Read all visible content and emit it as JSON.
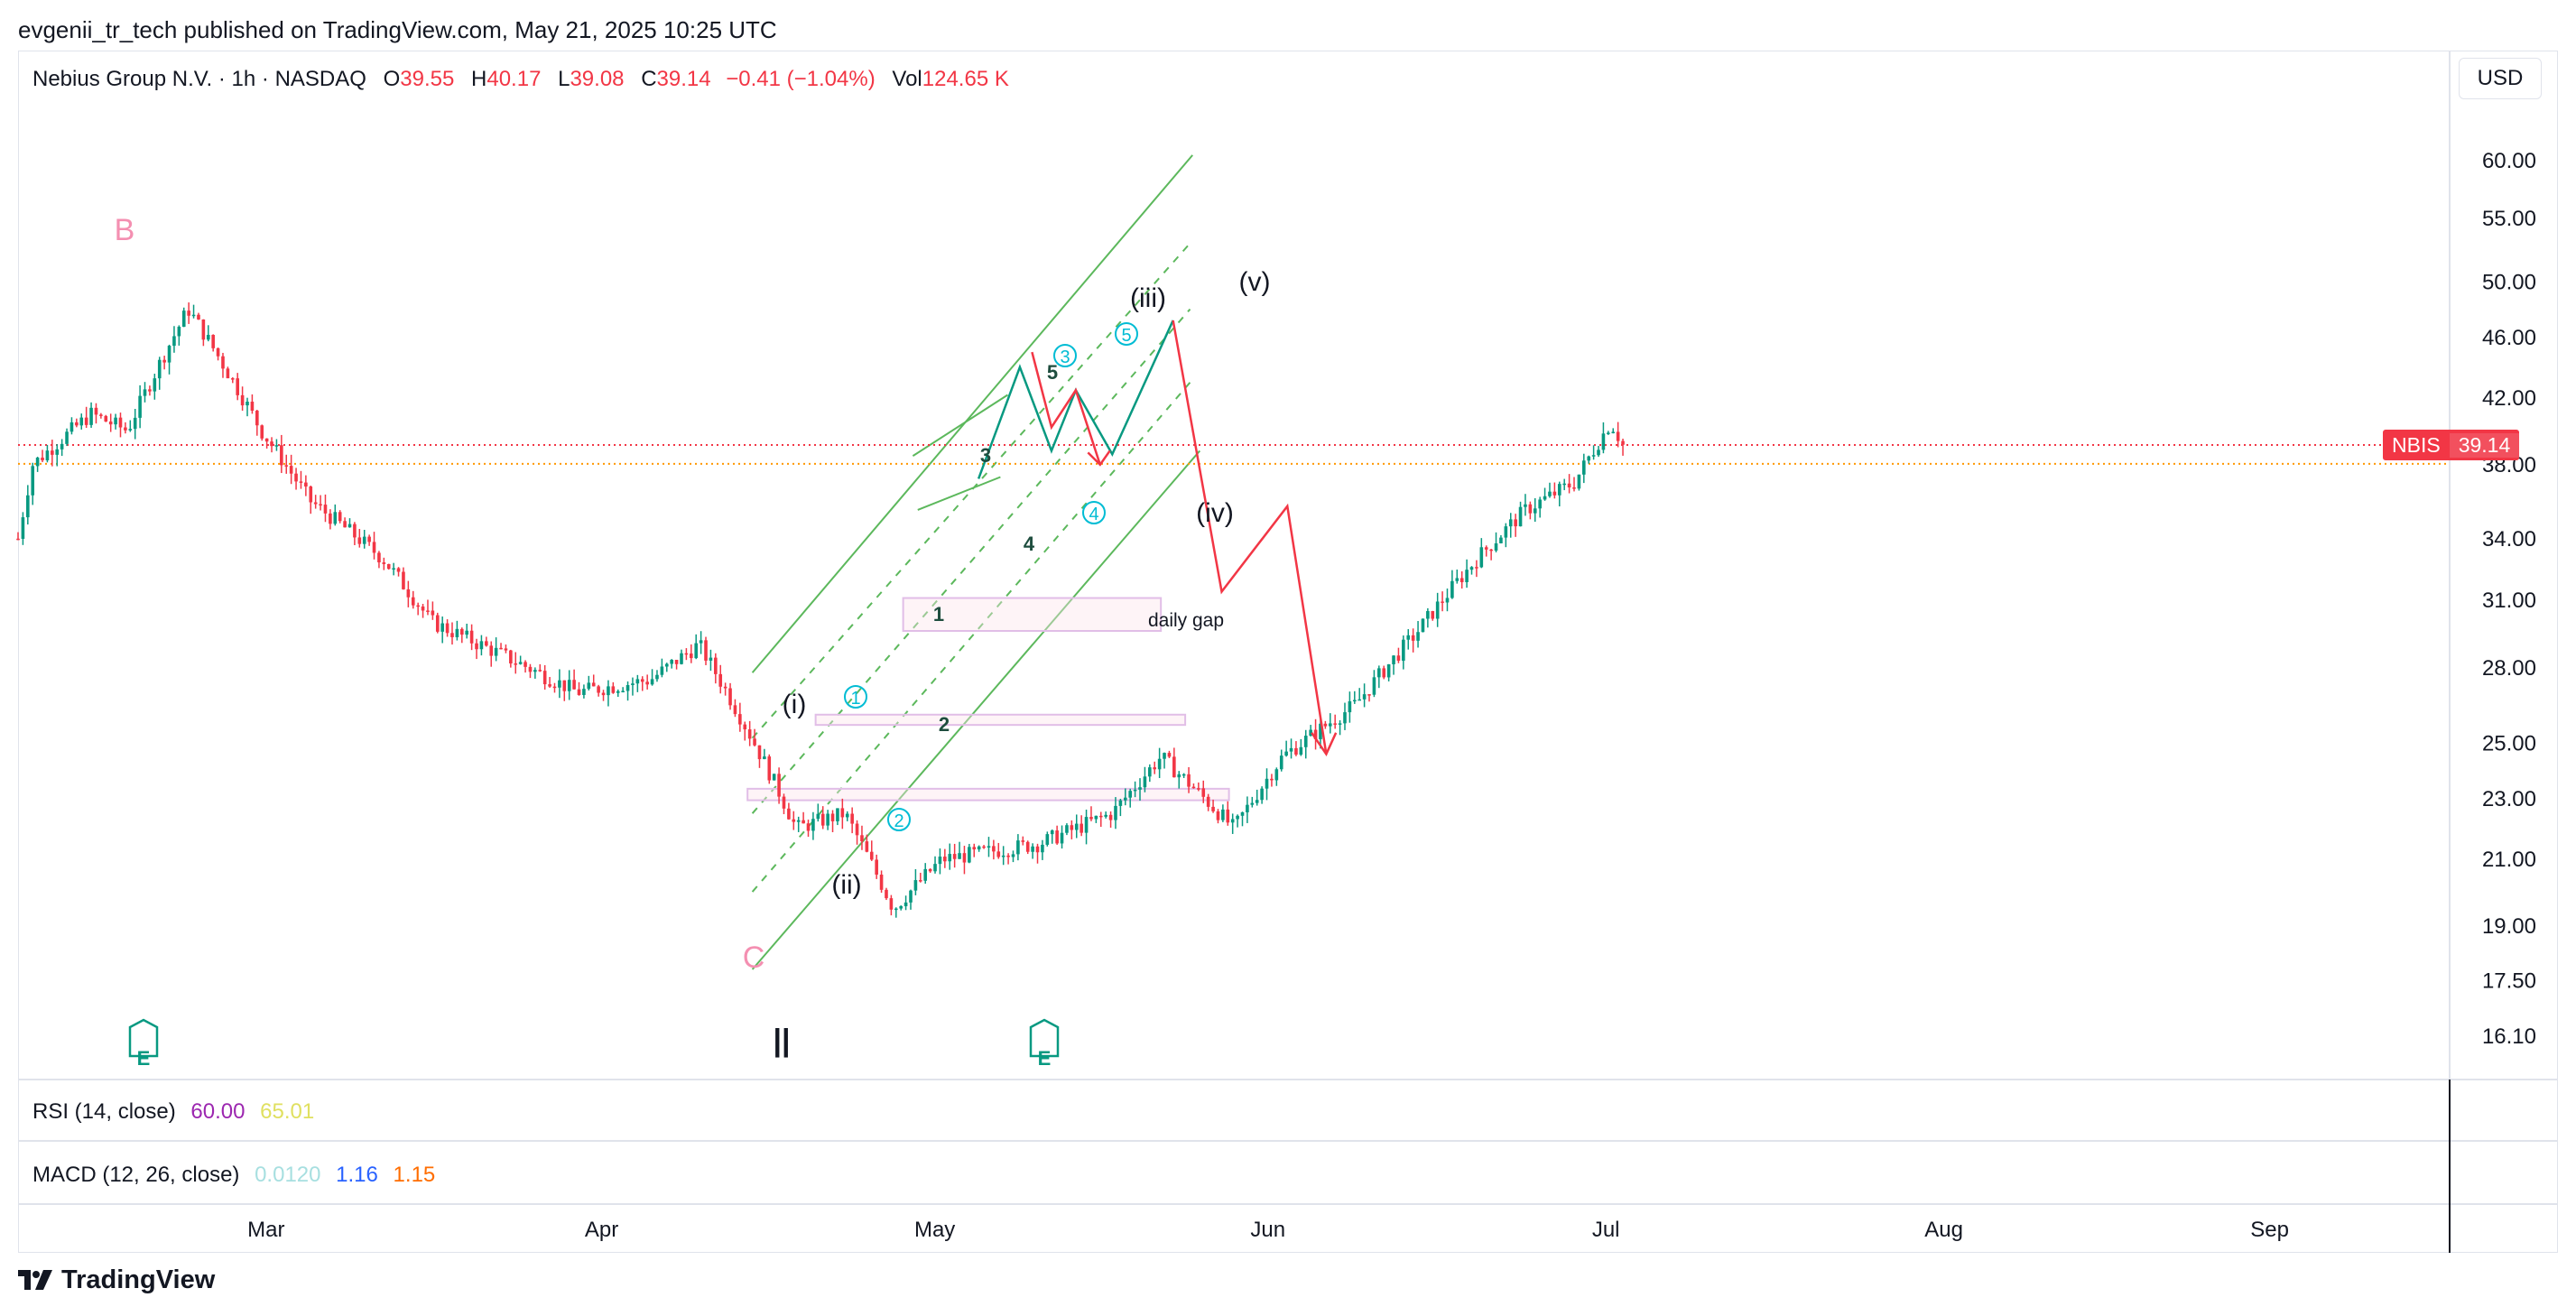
{
  "header": {
    "publisher_line": "evgenii_tr_tech published on TradingView.com, May 21, 2025 10:25 UTC"
  },
  "symbol": {
    "name": "Nebius Group N.V. · 1h · NASDAQ",
    "open_label": "O",
    "open": "39.55",
    "high_label": "H",
    "high": "40.17",
    "low_label": "L",
    "low": "39.08",
    "close_label": "C",
    "close": "39.14",
    "change": "−0.41 (−1.04%)",
    "volume_label": "Vol",
    "volume": "124.65 K"
  },
  "currency_button": "USD",
  "last_price_tag": {
    "ticker": "NBIS",
    "price": "39.14"
  },
  "rsi": {
    "label": "RSI (14, close)",
    "v1": "60.00",
    "v2": "65.01",
    "c1": "#9c27b0",
    "c2": "#e8e84a"
  },
  "macd": {
    "label": "MACD (12, 26, close)",
    "v1": "0.0120",
    "v2": "1.16",
    "v3": "1.15",
    "c1": "#a7dfe0",
    "c2": "#2962ff",
    "c3": "#ff6d00"
  },
  "footer": {
    "brand": "TradingView"
  },
  "colors": {
    "up": "#089981",
    "down": "#f23645",
    "channel": "#5cb85c",
    "projection": "#f23645",
    "wave_text": "#131722",
    "pink_label": "#f48fb1",
    "circle_label": "#00bcd4"
  },
  "annotations": {
    "B": "B",
    "C": "C",
    "i": "(i)",
    "ii": "(ii)",
    "iii": "(iii)",
    "iv": "(iv)",
    "v": "(v)",
    "n1": "1",
    "n2": "2",
    "n3": "3",
    "n4": "4",
    "n5": "5",
    "c1": "1",
    "c2": "2",
    "c3": "3",
    "c4": "4",
    "c5": "5",
    "gap": "daily gap",
    "earnings": "E",
    "session_break": "||"
  },
  "chart_data": {
    "type": "candlestick",
    "title": "Nebius Group N.V. · 1h · NASDAQ",
    "scale": "log",
    "y_ticks": [
      60.0,
      55.0,
      50.0,
      46.0,
      42.0,
      38.0,
      34.0,
      31.0,
      28.0,
      25.0,
      23.0,
      21.0,
      19.0,
      17.5,
      16.1
    ],
    "y_tick_labels": [
      "60.00",
      "55.00",
      "50.00",
      "46.00",
      "42.00",
      "38.00",
      "34.00",
      "31.00",
      "28.00",
      "25.00",
      "23.00",
      "21.00",
      "19.00",
      "17.50",
      "16.10"
    ],
    "x_tick_labels": [
      "Mar",
      "Apr",
      "May",
      "Jun",
      "Jul",
      "Aug",
      "Sep"
    ],
    "last_price": 39.14,
    "price_path_approx": [
      [
        0,
        34
      ],
      [
        0.006,
        38
      ],
      [
        0.03,
        41
      ],
      [
        0.045,
        40
      ],
      [
        0.07,
        48
      ],
      [
        0.085,
        44
      ],
      [
        0.1,
        40
      ],
      [
        0.12,
        36
      ],
      [
        0.15,
        33
      ],
      [
        0.17,
        30
      ],
      [
        0.2,
        28.5
      ],
      [
        0.23,
        27
      ],
      [
        0.26,
        27.5
      ],
      [
        0.28,
        29
      ],
      [
        0.3,
        25.5
      ],
      [
        0.32,
        22
      ],
      [
        0.34,
        22.5
      ],
      [
        0.36,
        19.5
      ],
      [
        0.38,
        21
      ],
      [
        0.42,
        21.5
      ],
      [
        0.45,
        22.5
      ],
      [
        0.47,
        24.5
      ],
      [
        0.5,
        22
      ],
      [
        0.52,
        24.5
      ],
      [
        0.55,
        26.5
      ],
      [
        0.575,
        29.5
      ],
      [
        0.6,
        33
      ],
      [
        0.62,
        35.5
      ],
      [
        0.64,
        37
      ],
      [
        0.655,
        40.5
      ],
      [
        0.66,
        39.14
      ]
    ],
    "projected_path": [
      [
        0.66,
        39.14
      ],
      [
        0.69,
        44
      ],
      [
        0.725,
        39
      ],
      [
        0.755,
        42
      ],
      [
        0.77,
        38
      ],
      [
        0.79,
        41
      ],
      [
        0.815,
        46
      ],
      [
        0.85,
        32
      ],
      [
        0.9,
        35.5
      ],
      [
        0.925,
        25
      ]
    ]
  }
}
